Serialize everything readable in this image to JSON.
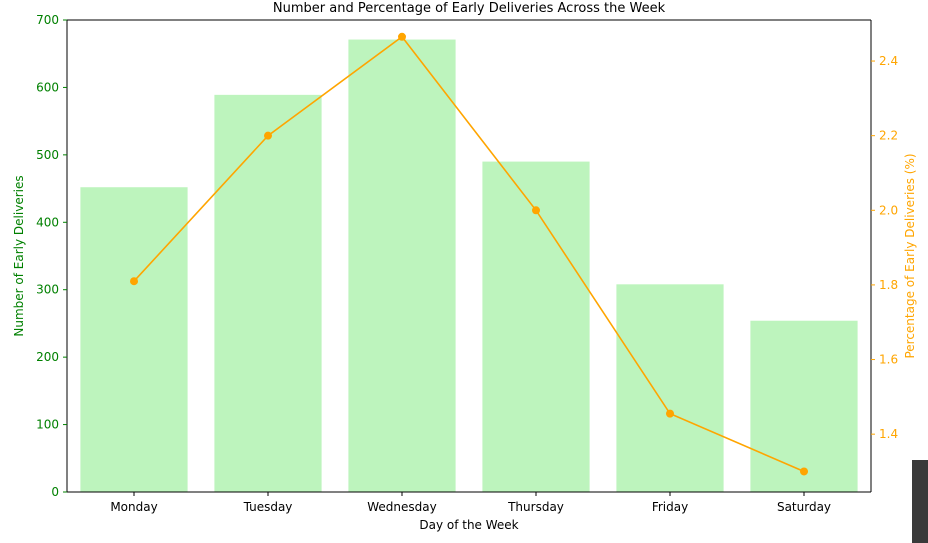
{
  "chart_data": {
    "type": "bar",
    "title": "Number and Percentage of Early Deliveries Across the Week",
    "xlabel": "Day of the Week",
    "ylabel": "Number of Early Deliveries",
    "y2label": "Percentage of Early Deliveries (%)",
    "categories": [
      "Monday",
      "Tuesday",
      "Wednesday",
      "Thursday",
      "Friday",
      "Saturday"
    ],
    "ylim": [
      0,
      700
    ],
    "y2lim": [
      1.245,
      2.51
    ],
    "yticks": [
      "0",
      "100",
      "200",
      "300",
      "400",
      "500",
      "600",
      "700"
    ],
    "y2ticks": [
      "1.4",
      "1.6",
      "1.8",
      "2.0",
      "2.2",
      "2.4"
    ],
    "series": [
      {
        "type": "bar",
        "axis": "left",
        "values": [
          452,
          589,
          671,
          490,
          308,
          254
        ]
      },
      {
        "type": "line",
        "axis": "right",
        "values": [
          1.81,
          2.2,
          2.465,
          2.0,
          1.455,
          1.3
        ]
      }
    ],
    "colors": {
      "bar": "#bdf4bd",
      "line": "#ffa500",
      "left_axis": "#008000",
      "right_axis": "#ffa500"
    },
    "grid": false
  }
}
